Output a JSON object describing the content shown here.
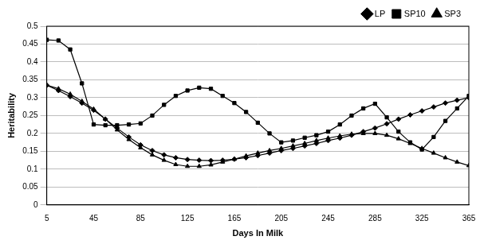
{
  "chart_data": {
    "type": "line",
    "x_label": "Days In Milk",
    "y_label": "Heritability",
    "x": [
      5,
      15,
      25,
      35,
      45,
      55,
      65,
      75,
      85,
      95,
      105,
      115,
      125,
      135,
      145,
      155,
      165,
      175,
      185,
      195,
      205,
      215,
      225,
      235,
      245,
      255,
      265,
      275,
      285,
      295,
      305,
      315,
      325,
      335,
      345,
      355,
      365
    ],
    "series": [
      {
        "name": "LP",
        "color": "#000000",
        "marker": "diamond",
        "line_style": "solid",
        "values": [
          0.335,
          0.32,
          0.303,
          0.285,
          0.265,
          0.24,
          0.215,
          0.19,
          0.168,
          0.152,
          0.14,
          0.132,
          0.127,
          0.125,
          0.124,
          0.125,
          0.128,
          0.132,
          0.138,
          0.145,
          0.152,
          0.158,
          0.165,
          0.172,
          0.18,
          0.187,
          0.195,
          0.205,
          0.215,
          0.227,
          0.24,
          0.252,
          0.263,
          0.274,
          0.285,
          0.293,
          0.3
        ]
      },
      {
        "name": "SP10",
        "color": "#000000",
        "marker": "square",
        "line_style": "solid",
        "values": [
          0.462,
          0.46,
          0.435,
          0.34,
          0.225,
          0.223,
          0.223,
          0.225,
          0.228,
          0.25,
          0.28,
          0.305,
          0.32,
          0.328,
          0.325,
          0.305,
          0.285,
          0.26,
          0.23,
          0.2,
          0.175,
          0.18,
          0.188,
          0.195,
          0.205,
          0.225,
          0.25,
          0.27,
          0.283,
          0.245,
          0.205,
          0.175,
          0.155,
          0.19,
          0.235,
          0.27,
          0.305
        ]
      },
      {
        "name": "SP3",
        "color": "#000000",
        "marker": "triangle",
        "line_style": "solid",
        "values": [
          0.335,
          0.325,
          0.31,
          0.29,
          0.268,
          0.24,
          0.21,
          0.183,
          0.16,
          0.14,
          0.125,
          0.113,
          0.108,
          0.108,
          0.112,
          0.12,
          0.128,
          0.137,
          0.145,
          0.152,
          0.158,
          0.165,
          0.172,
          0.18,
          0.187,
          0.193,
          0.198,
          0.2,
          0.2,
          0.195,
          0.185,
          0.172,
          0.158,
          0.145,
          0.132,
          0.12,
          0.11
        ]
      }
    ],
    "xlim": [
      5,
      365
    ],
    "xticks": [
      5,
      45,
      85,
      125,
      165,
      205,
      245,
      285,
      325,
      365
    ],
    "ylim": [
      0,
      0.5
    ],
    "yticks": [
      0,
      0.05,
      0.1,
      0.15,
      0.2,
      0.25,
      0.3,
      0.35,
      0.4,
      0.45,
      0.5
    ],
    "grid": true,
    "legend": "top right"
  }
}
